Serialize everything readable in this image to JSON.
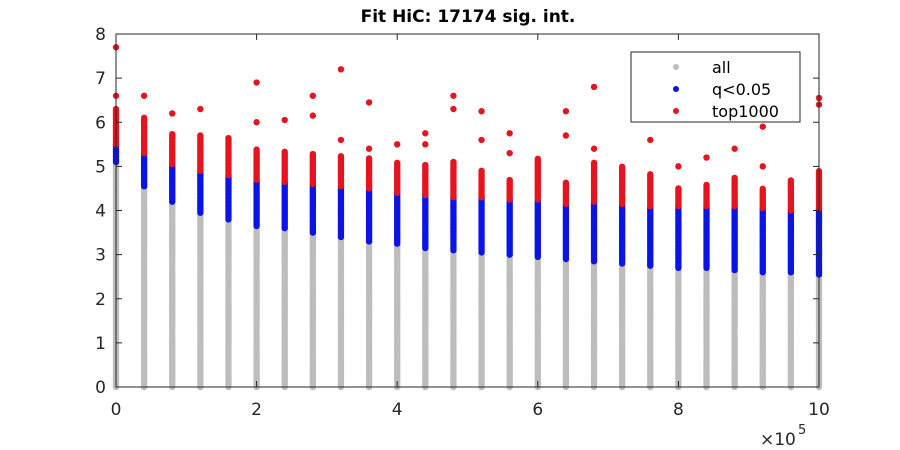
{
  "chart_data": {
    "type": "scatter",
    "title": "Fit HiC: 17174 sig. int.",
    "xlabel": "",
    "ylabel": "",
    "x_multiplier": "×10",
    "x_multiplier_exp": "5",
    "x_multiplier_value": 100000,
    "xlim": [
      0,
      10
    ],
    "ylim": [
      0,
      8
    ],
    "xticks": [
      "0",
      "2",
      "4",
      "6",
      "8",
      "10"
    ],
    "yticks": [
      "0",
      "1",
      "2",
      "3",
      "4",
      "5",
      "6",
      "7",
      "8"
    ],
    "grid": false,
    "legend": {
      "position": "top-right",
      "entries": [
        "all",
        "q<0.05",
        "top1000"
      ]
    },
    "colors": {
      "all": "#bdbdbd",
      "sig": "#0a14e6",
      "top": "#e6141e"
    },
    "bins": [
      {
        "x": 0.0,
        "all_max": 5.1,
        "sig_max": 5.5,
        "top_max": 6.3,
        "top_outliers": [
          6.6,
          7.7
        ]
      },
      {
        "x": 0.4,
        "all_max": 4.55,
        "sig_max": 5.3,
        "top_max": 6.1,
        "top_outliers": [
          6.6
        ]
      },
      {
        "x": 0.8,
        "all_max": 4.2,
        "sig_max": 5.05,
        "top_max": 5.75,
        "top_outliers": [
          6.2
        ]
      },
      {
        "x": 1.2,
        "all_max": 3.95,
        "sig_max": 4.9,
        "top_max": 5.7,
        "top_outliers": [
          6.3
        ]
      },
      {
        "x": 1.6,
        "all_max": 3.8,
        "sig_max": 4.8,
        "top_max": 5.65,
        "top_outliers": []
      },
      {
        "x": 2.0,
        "all_max": 3.65,
        "sig_max": 4.7,
        "top_max": 5.4,
        "top_outliers": [
          6.0,
          6.9
        ]
      },
      {
        "x": 2.4,
        "all_max": 3.6,
        "sig_max": 4.65,
        "top_max": 5.35,
        "top_outliers": [
          6.05
        ]
      },
      {
        "x": 2.8,
        "all_max": 3.5,
        "sig_max": 4.6,
        "top_max": 5.3,
        "top_outliers": [
          6.15,
          6.6
        ]
      },
      {
        "x": 3.2,
        "all_max": 3.4,
        "sig_max": 4.55,
        "top_max": 5.25,
        "top_outliers": [
          5.6,
          7.2
        ]
      },
      {
        "x": 3.6,
        "all_max": 3.3,
        "sig_max": 4.5,
        "top_max": 5.2,
        "top_outliers": [
          5.4,
          6.45
        ]
      },
      {
        "x": 4.0,
        "all_max": 3.25,
        "sig_max": 4.4,
        "top_max": 5.1,
        "top_outliers": [
          5.5
        ]
      },
      {
        "x": 4.4,
        "all_max": 3.15,
        "sig_max": 4.35,
        "top_max": 5.05,
        "top_outliers": [
          5.5,
          5.75
        ]
      },
      {
        "x": 4.8,
        "all_max": 3.1,
        "sig_max": 4.3,
        "top_max": 5.1,
        "top_outliers": [
          6.3,
          6.6
        ]
      },
      {
        "x": 5.2,
        "all_max": 3.05,
        "sig_max": 4.3,
        "top_max": 4.9,
        "top_outliers": [
          5.6,
          6.25
        ]
      },
      {
        "x": 5.6,
        "all_max": 3.0,
        "sig_max": 4.25,
        "top_max": 4.7,
        "top_outliers": [
          5.3,
          5.75
        ]
      },
      {
        "x": 6.0,
        "all_max": 2.95,
        "sig_max": 4.25,
        "top_max": 5.2,
        "top_outliers": []
      },
      {
        "x": 6.4,
        "all_max": 2.9,
        "sig_max": 4.15,
        "top_max": 4.65,
        "top_outliers": [
          5.7,
          6.25
        ]
      },
      {
        "x": 6.8,
        "all_max": 2.85,
        "sig_max": 4.2,
        "top_max": 5.1,
        "top_outliers": [
          5.4,
          6.8
        ]
      },
      {
        "x": 7.2,
        "all_max": 2.8,
        "sig_max": 4.15,
        "top_max": 5.0,
        "top_outliers": []
      },
      {
        "x": 7.6,
        "all_max": 2.75,
        "sig_max": 4.1,
        "top_max": 4.85,
        "top_outliers": [
          5.6
        ]
      },
      {
        "x": 8.0,
        "all_max": 2.7,
        "sig_max": 4.1,
        "top_max": 4.5,
        "top_outliers": [
          5.0
        ]
      },
      {
        "x": 8.4,
        "all_max": 2.7,
        "sig_max": 4.1,
        "top_max": 4.6,
        "top_outliers": [
          5.2
        ]
      },
      {
        "x": 8.8,
        "all_max": 2.65,
        "sig_max": 4.1,
        "top_max": 4.75,
        "top_outliers": [
          5.4
        ]
      },
      {
        "x": 9.2,
        "all_max": 2.6,
        "sig_max": 4.05,
        "top_max": 4.5,
        "top_outliers": [
          5.0,
          5.9
        ]
      },
      {
        "x": 9.6,
        "all_max": 2.6,
        "sig_max": 4.0,
        "top_max": 4.7,
        "top_outliers": []
      },
      {
        "x": 10.0,
        "all_max": 2.55,
        "sig_max": 4.05,
        "top_max": 4.9,
        "top_outliers": [
          6.4,
          6.55
        ]
      }
    ]
  }
}
